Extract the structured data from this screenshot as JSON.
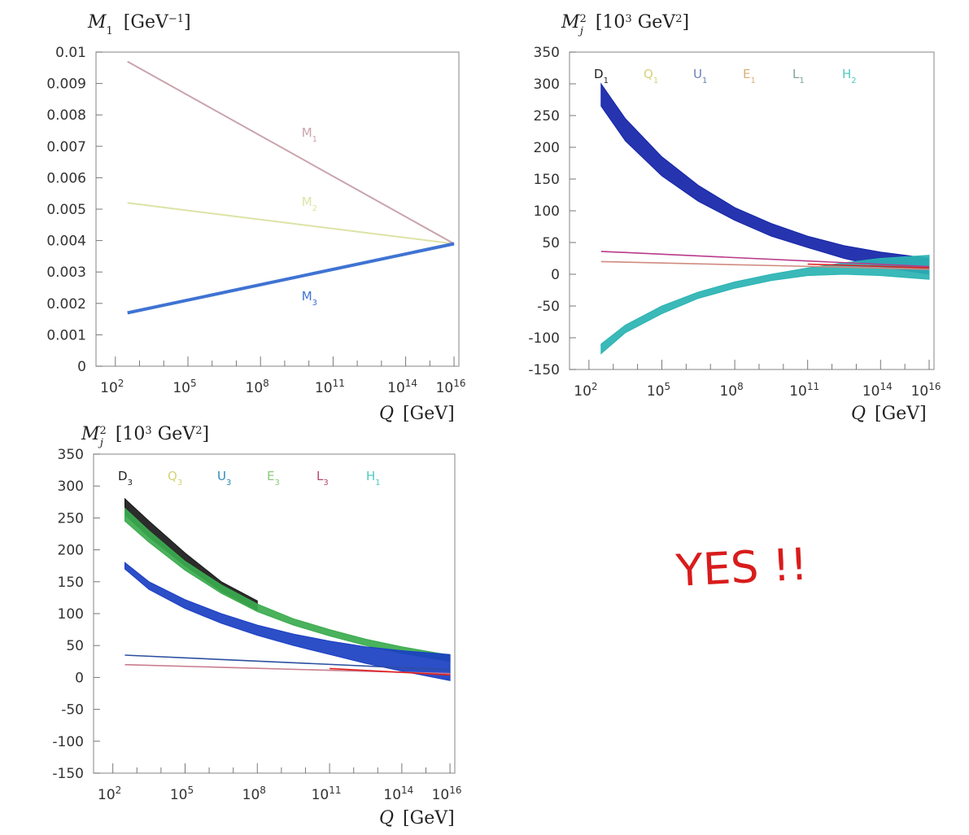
{
  "chart_data": [
    {
      "type": "line",
      "ytitle": "M_1 [GeV^{-1}]",
      "ytitle_main": "M",
      "ytitle_sub": "1",
      "ytitle_unit": " [GeV",
      "ytitle_unit_sup": "−1",
      "ytitle_unit_end": "]",
      "xtitle": "Q [GeV]",
      "xtitle_q": "Q",
      "xtitle_unit": " [GeV]",
      "xscale": "log",
      "xlim_log10": [
        1.2,
        16.2
      ],
      "ylim": [
        0,
        0.01
      ],
      "yticks": [
        0,
        0.001,
        0.002,
        0.003,
        0.004,
        0.005,
        0.006,
        0.007,
        0.008,
        0.009,
        0.01
      ],
      "ytick_labels": [
        "0",
        "0.001",
        "0.002",
        "0.003",
        "0.004",
        "0.005",
        "0.006",
        "0.007",
        "0.008",
        "0.009",
        "0.01"
      ],
      "xtick_exponents": [
        "2",
        "5",
        "8",
        "11",
        "14",
        "16"
      ],
      "xtick_base": "10",
      "series": [
        {
          "name": "M1",
          "name_main": "M",
          "name_sub": "1",
          "color": "#c9a4ad",
          "width": 2,
          "x_log10": [
            2.5,
            16
          ],
          "y": [
            0.0097,
            0.0039
          ],
          "label_x_log10": 9.7,
          "label_y": 0.0073
        },
        {
          "name": "M2",
          "name_main": "M",
          "name_sub": "2",
          "color": "#dde3a6",
          "width": 2,
          "x_log10": [
            2.5,
            16
          ],
          "y": [
            0.0052,
            0.0039
          ],
          "label_x_log10": 9.7,
          "label_y": 0.0051
        },
        {
          "name": "M3",
          "name_main": "M",
          "name_sub": "3",
          "color": "#3f73d3",
          "width": 4,
          "x_log10": [
            2.5,
            16
          ],
          "y": [
            0.0017,
            0.0039
          ],
          "label_x_log10": 9.7,
          "label_y": 0.0021
        }
      ]
    },
    {
      "type": "area",
      "ytitle": "M_j^2 [10^3 GeV^2]",
      "xtitle": "Q [GeV]",
      "xscale": "log",
      "xlim_log10": [
        1.2,
        16.2
      ],
      "ylim": [
        -150,
        350
      ],
      "yticks": [
        -150,
        -100,
        -50,
        0,
        50,
        100,
        150,
        200,
        250,
        300,
        350
      ],
      "xtick_exponents": [
        "2",
        "5",
        "8",
        "11",
        "14",
        "16"
      ],
      "legend": [
        {
          "name": "D1",
          "main": "D",
          "sub": "1",
          "color": "#222222"
        },
        {
          "name": "Q1",
          "main": "Q",
          "sub": "1",
          "color": "#d6d27a"
        },
        {
          "name": "U1",
          "main": "U",
          "sub": "1",
          "color": "#6b7fb8"
        },
        {
          "name": "E1",
          "main": "E",
          "sub": "1",
          "color": "#d9b07a"
        },
        {
          "name": "L1",
          "main": "L",
          "sub": "1",
          "color": "#7fa39a"
        },
        {
          "name": "H2",
          "main": "H",
          "sub": "2",
          "color": "#4fc9c0"
        }
      ],
      "series": [
        {
          "name": "D1 Q1 U1 band",
          "color": "#1324a8",
          "x_log10": [
            2.5,
            3.5,
            5,
            6.5,
            8,
            9.5,
            11,
            12.5,
            14,
            16
          ],
          "upper": [
            300,
            245,
            185,
            140,
            105,
            80,
            60,
            45,
            35,
            25
          ],
          "lower": [
            265,
            210,
            155,
            115,
            85,
            60,
            42,
            25,
            12,
            0
          ]
        },
        {
          "name": "H2 band",
          "color": "#2ab3b3",
          "x_log10": [
            2.5,
            3.5,
            5,
            6.5,
            8,
            9.5,
            11,
            12.5,
            14,
            16
          ],
          "upper": [
            -110,
            -80,
            -50,
            -28,
            -12,
            0,
            10,
            18,
            25,
            30
          ],
          "lower": [
            -125,
            -92,
            -62,
            -38,
            -22,
            -10,
            -2,
            0,
            -2,
            -8
          ]
        },
        {
          "name": "L1",
          "color": "#b93a8a",
          "x_log10": [
            2.5,
            16
          ],
          "y": [
            36,
            12
          ],
          "line": true
        },
        {
          "name": "E1",
          "color": "#d08b80",
          "x_log10": [
            2.5,
            16
          ],
          "y": [
            20,
            8
          ],
          "line": true
        },
        {
          "name": "E1 end",
          "color": "#e02020",
          "x_log10": [
            11,
            16
          ],
          "y": [
            16,
            10
          ],
          "line": true
        }
      ]
    },
    {
      "type": "area",
      "ytitle": "M_j^2 [10^3 GeV^2]",
      "xtitle": "Q [GeV]",
      "xscale": "log",
      "xlim_log10": [
        1.2,
        16.2
      ],
      "ylim": [
        -150,
        350
      ],
      "yticks": [
        -150,
        -100,
        -50,
        0,
        50,
        100,
        150,
        200,
        250,
        300,
        350
      ],
      "xtick_exponents": [
        "2",
        "5",
        "8",
        "11",
        "14",
        "16"
      ],
      "legend": [
        {
          "name": "D3",
          "main": "D",
          "sub": "3",
          "color": "#222222"
        },
        {
          "name": "Q3",
          "main": "Q",
          "sub": "3",
          "color": "#d6d27a"
        },
        {
          "name": "U3",
          "main": "U",
          "sub": "3",
          "color": "#2e8ab5"
        },
        {
          "name": "E3",
          "main": "E",
          "sub": "3",
          "color": "#8bc87a"
        },
        {
          "name": "L3",
          "main": "L",
          "sub": "3",
          "color": "#b5476f"
        },
        {
          "name": "H1",
          "main": "H",
          "sub": "1",
          "color": "#4fc9c0"
        }
      ],
      "series": [
        {
          "name": "D3 band",
          "color": "#1a1a1a",
          "x_log10": [
            2.5,
            3.5,
            5,
            6.5,
            8
          ],
          "upper": [
            280,
            245,
            195,
            150,
            120
          ],
          "lower": [
            255,
            220,
            175,
            135,
            105
          ]
        },
        {
          "name": "Q3 band",
          "color": "#3bab4e",
          "x_log10": [
            2.5,
            3.5,
            5,
            6.5,
            8,
            9.5,
            11,
            12.5,
            14,
            16
          ],
          "upper": [
            265,
            230,
            182,
            145,
            115,
            92,
            75,
            60,
            48,
            35
          ],
          "lower": [
            245,
            212,
            168,
            132,
            103,
            82,
            65,
            50,
            38,
            25
          ]
        },
        {
          "name": "U3 band",
          "color": "#1a3fc2",
          "x_log10": [
            2.5,
            3.5,
            5,
            6.5,
            8,
            9.5,
            11,
            12.5,
            14,
            16
          ],
          "upper": [
            180,
            150,
            122,
            100,
            82,
            68,
            57,
            48,
            42,
            36
          ],
          "lower": [
            170,
            138,
            108,
            85,
            66,
            50,
            36,
            22,
            10,
            -5
          ]
        },
        {
          "name": "L3",
          "color": "#2c4fa0",
          "x_log10": [
            2.5,
            16
          ],
          "y": [
            35,
            12
          ],
          "line": true
        },
        {
          "name": "E3",
          "color": "#c97b8e",
          "x_log10": [
            2.5,
            16
          ],
          "y": [
            20,
            6
          ],
          "line": true
        },
        {
          "name": "E3 end",
          "color": "#e02020",
          "x_log10": [
            11,
            16
          ],
          "y": [
            14,
            4
          ],
          "line": true
        }
      ]
    }
  ],
  "annotation": "YES !!"
}
